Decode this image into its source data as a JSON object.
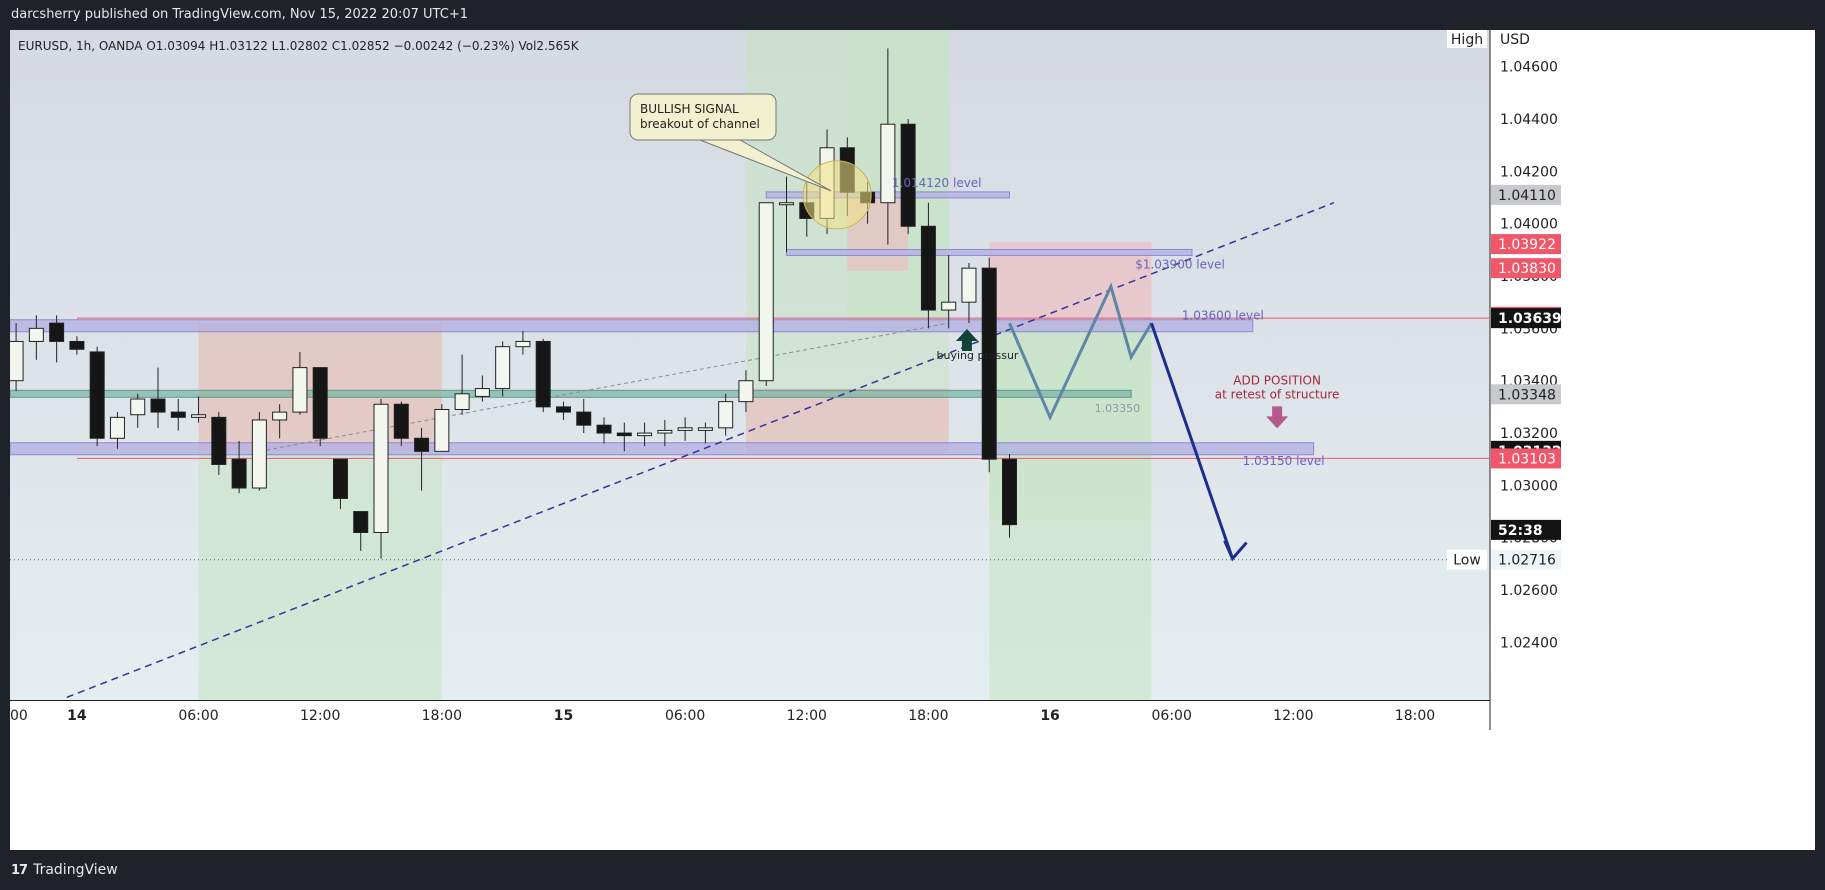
{
  "header": {
    "publisher_line": "darcsherry published on TradingView.com, Nov 15, 2022 20:07 UTC+1"
  },
  "footer": {
    "brand": "TradingView",
    "logo_glyph": "17"
  },
  "colors": {
    "bull_fill": "#f2f6ee",
    "bear_fill": "#161616",
    "green_zone": "#c7e3c4",
    "red_zone": "#efb9bd",
    "purple_band": "#b3aee3",
    "teal_band": "#7fb6a6",
    "trend_line": "#35339a",
    "arrow_blue": "#1b2f8c",
    "zigzag": "#5e86a6",
    "price_red": "#f0576a",
    "axis_bg": "#ffffff"
  },
  "chart_data": {
    "type": "candlestick",
    "legend_line": "EURUSD, 1h, OANDA  O1.03094  H1.03122  L1.02802  C1.02852  −0.00242 (−0.23%)  Vol2.565K",
    "currency": "USD",
    "ylim": [
      1.0218,
      1.0474
    ],
    "xlim": [
      -0.3,
      72.7
    ],
    "x_unit": "hours since Nov 13 21:00",
    "x_ticks": [
      {
        "x": -0.3,
        "label": "00"
      },
      {
        "x": 3,
        "label": "14"
      },
      {
        "x": 9,
        "label": "06:00"
      },
      {
        "x": 15,
        "label": "12:00"
      },
      {
        "x": 21,
        "label": "18:00"
      },
      {
        "x": 27,
        "label": "15"
      },
      {
        "x": 33,
        "label": "06:00"
      },
      {
        "x": 39,
        "label": "12:00"
      },
      {
        "x": 45,
        "label": "18:00"
      },
      {
        "x": 51,
        "label": "16"
      },
      {
        "x": 57,
        "label": "06:00"
      },
      {
        "x": 63,
        "label": "12:00"
      },
      {
        "x": 69,
        "label": "18:00"
      }
    ],
    "y_ticks": [
      1.024,
      1.026,
      1.028,
      1.03,
      1.032,
      1.034,
      1.036,
      1.038,
      1.04,
      1.042,
      1.044,
      1.046
    ],
    "y_tick_labels": [
      "1.02400",
      "1.02600",
      "1.02800",
      "1.03000",
      "1.03200",
      "1.03400",
      "1.03600",
      "1.03800",
      "1.04000",
      "1.04200",
      "1.04400",
      "1.04600"
    ],
    "candles": [
      {
        "x": -1,
        "o": 1.0332,
        "h": 1.0342,
        "l": 1.0322,
        "c": 1.034
      },
      {
        "x": 0,
        "o": 1.034,
        "h": 1.0362,
        "l": 1.0336,
        "c": 1.0355
      },
      {
        "x": 1,
        "o": 1.0355,
        "h": 1.0365,
        "l": 1.0348,
        "c": 1.036
      },
      {
        "x": 2,
        "o": 1.0362,
        "h": 1.0365,
        "l": 1.0347,
        "c": 1.0355
      },
      {
        "x": 3,
        "o": 1.0355,
        "h": 1.0357,
        "l": 1.035,
        "c": 1.0352
      },
      {
        "x": 4,
        "o": 1.0351,
        "h": 1.0353,
        "l": 1.0315,
        "c": 1.0318
      },
      {
        "x": 5,
        "o": 1.0318,
        "h": 1.0328,
        "l": 1.0314,
        "c": 1.0326
      },
      {
        "x": 6,
        "o": 1.0327,
        "h": 1.0335,
        "l": 1.0322,
        "c": 1.0333
      },
      {
        "x": 7,
        "o": 1.0333,
        "h": 1.0345,
        "l": 1.0322,
        "c": 1.0328
      },
      {
        "x": 8,
        "o": 1.0328,
        "h": 1.0333,
        "l": 1.0321,
        "c": 1.0326
      },
      {
        "x": 9,
        "o": 1.0326,
        "h": 1.0334,
        "l": 1.0324,
        "c": 1.0327
      },
      {
        "x": 10,
        "o": 1.0326,
        "h": 1.0328,
        "l": 1.0304,
        "c": 1.0308
      },
      {
        "x": 11,
        "o": 1.031,
        "h": 1.0317,
        "l": 1.0297,
        "c": 1.0299
      },
      {
        "x": 12,
        "o": 1.0299,
        "h": 1.0328,
        "l": 1.0298,
        "c": 1.0325
      },
      {
        "x": 13,
        "o": 1.0325,
        "h": 1.0331,
        "l": 1.0318,
        "c": 1.0328
      },
      {
        "x": 14,
        "o": 1.0328,
        "h": 1.0351,
        "l": 1.0327,
        "c": 1.0345
      },
      {
        "x": 15,
        "o": 1.0345,
        "h": 1.0345,
        "l": 1.0315,
        "c": 1.0318
      },
      {
        "x": 16,
        "o": 1.031,
        "h": 1.031,
        "l": 1.0291,
        "c": 1.0295
      },
      {
        "x": 17,
        "o": 1.029,
        "h": 1.029,
        "l": 1.0275,
        "c": 1.0282
      },
      {
        "x": 18,
        "o": 1.0282,
        "h": 1.0333,
        "l": 1.0272,
        "c": 1.0331
      },
      {
        "x": 19,
        "o": 1.0331,
        "h": 1.0332,
        "l": 1.0315,
        "c": 1.0318
      },
      {
        "x": 20,
        "o": 1.0318,
        "h": 1.0322,
        "l": 1.0298,
        "c": 1.0313
      },
      {
        "x": 21,
        "o": 1.0313,
        "h": 1.0331,
        "l": 1.0313,
        "c": 1.0329
      },
      {
        "x": 22,
        "o": 1.0329,
        "h": 1.035,
        "l": 1.0327,
        "c": 1.0335
      },
      {
        "x": 23,
        "o": 1.0334,
        "h": 1.0342,
        "l": 1.0332,
        "c": 1.0337
      },
      {
        "x": 24,
        "o": 1.0337,
        "h": 1.0355,
        "l": 1.0334,
        "c": 1.0353
      },
      {
        "x": 25,
        "o": 1.0353,
        "h": 1.0359,
        "l": 1.035,
        "c": 1.0355
      },
      {
        "x": 26,
        "o": 1.0355,
        "h": 1.0356,
        "l": 1.0328,
        "c": 1.033
      },
      {
        "x": 27,
        "o": 1.033,
        "h": 1.0332,
        "l": 1.0325,
        "c": 1.0328
      },
      {
        "x": 28,
        "o": 1.0328,
        "h": 1.0333,
        "l": 1.032,
        "c": 1.0323
      },
      {
        "x": 29,
        "o": 1.0323,
        "h": 1.0326,
        "l": 1.0316,
        "c": 1.032
      },
      {
        "x": 30,
        "o": 1.032,
        "h": 1.0324,
        "l": 1.0313,
        "c": 1.0319
      },
      {
        "x": 31,
        "o": 1.0319,
        "h": 1.0324,
        "l": 1.0315,
        "c": 1.032
      },
      {
        "x": 32,
        "o": 1.032,
        "h": 1.0325,
        "l": 1.0315,
        "c": 1.0321
      },
      {
        "x": 33,
        "o": 1.0321,
        "h": 1.0326,
        "l": 1.0317,
        "c": 1.0322
      },
      {
        "x": 34,
        "o": 1.0321,
        "h": 1.0324,
        "l": 1.0316,
        "c": 1.0322
      },
      {
        "x": 35,
        "o": 1.0322,
        "h": 1.0335,
        "l": 1.0319,
        "c": 1.0332
      },
      {
        "x": 36,
        "o": 1.0332,
        "h": 1.0344,
        "l": 1.0328,
        "c": 1.034
      },
      {
        "x": 37,
        "o": 1.034,
        "h": 1.0408,
        "l": 1.0338,
        "c": 1.0408
      },
      {
        "x": 38,
        "o": 1.0408,
        "h": 1.0418,
        "l": 1.0389,
        "c": 1.0408
      },
      {
        "x": 39,
        "o": 1.0408,
        "h": 1.0416,
        "l": 1.0395,
        "c": 1.0402
      },
      {
        "x": 40,
        "o": 1.0402,
        "h": 1.0436,
        "l": 1.0396,
        "c": 1.0429
      },
      {
        "x": 41,
        "o": 1.0429,
        "h": 1.0433,
        "l": 1.0403,
        "c": 1.0412
      },
      {
        "x": 42,
        "o": 1.0412,
        "h": 1.0416,
        "l": 1.04,
        "c": 1.0408
      },
      {
        "x": 43,
        "o": 1.0408,
        "h": 1.0467,
        "l": 1.0392,
        "c": 1.0438
      },
      {
        "x": 44,
        "o": 1.0438,
        "h": 1.044,
        "l": 1.0396,
        "c": 1.0399
      },
      {
        "x": 45,
        "o": 1.0399,
        "h": 1.0408,
        "l": 1.036,
        "c": 1.0367
      },
      {
        "x": 46,
        "o": 1.0367,
        "h": 1.0388,
        "l": 1.036,
        "c": 1.037
      },
      {
        "x": 47,
        "o": 1.037,
        "h": 1.0385,
        "l": 1.0362,
        "c": 1.0383
      },
      {
        "x": 48,
        "o": 1.0383,
        "h": 1.0387,
        "l": 1.0305,
        "c": 1.031
      },
      {
        "x": 49,
        "o": 1.031,
        "h": 1.0312,
        "l": 1.028,
        "c": 1.0285
      }
    ],
    "annotations": {
      "signal_title": "BULLISH SIGNAL",
      "signal_subtitle": "breakout of channel",
      "level_1": "1.014120 level",
      "level_2": "$1.03900 level",
      "level_3": "1.03600 level",
      "level_4": "1.03350",
      "level_5": "1.03150 level",
      "buying": "buying pressur",
      "add_position_1": "ADD POSITION",
      "add_position_2": "at retest of structure",
      "high": "High",
      "low": "Low"
    },
    "axis_badges": [
      {
        "value": 1.0411,
        "label": "1.04110",
        "kind": "grey"
      },
      {
        "value": 1.03922,
        "label": "1.03922",
        "kind": "red"
      },
      {
        "value": 1.0383,
        "label": "1.03830",
        "kind": "red"
      },
      {
        "value": 1.03644,
        "label": "1.03644",
        "kind": "red"
      },
      {
        "value": 1.03639,
        "label": "1.03639",
        "kind": "black"
      },
      {
        "value": 1.03348,
        "label": "1.03348",
        "kind": "grey"
      },
      {
        "value": 1.03132,
        "label": "1.03132",
        "kind": "black"
      },
      {
        "value": 1.03103,
        "label": "1.03103",
        "kind": "red"
      },
      {
        "value": 1.0283,
        "label": "52:38",
        "kind": "black"
      },
      {
        "value": 1.02716,
        "label": "1.02716",
        "kind": "white"
      }
    ],
    "zones": [
      {
        "kind": "green",
        "x0": 9,
        "x1": 21,
        "y0": 1.0218,
        "y1": 1.0362
      },
      {
        "kind": "red",
        "x0": 9,
        "x1": 21,
        "y0": 1.0313,
        "y1": 1.0362
      },
      {
        "kind": "green",
        "x0": 36,
        "x1": 46,
        "y0": 1.0313,
        "y1": 1.0474
      },
      {
        "kind": "green",
        "x0": 41,
        "x1": 46,
        "y0": 1.0362,
        "y1": 1.0474
      },
      {
        "kind": "red",
        "x0": 36,
        "x1": 46,
        "y0": 1.0312,
        "y1": 1.0337
      },
      {
        "kind": "red",
        "x0": 41,
        "x1": 44,
        "y0": 1.0382,
        "y1": 1.041
      },
      {
        "kind": "green",
        "x0": 48,
        "x1": 56,
        "y0": 1.0218,
        "y1": 1.0362
      },
      {
        "kind": "red",
        "x0": 48,
        "x1": 56,
        "y0": 1.0362,
        "y1": 1.0393
      },
      {
        "kind": "green",
        "x0": 48,
        "x1": 56,
        "y0": 1.0287,
        "y1": 1.0362
      }
    ],
    "bands": [
      {
        "kind": "purple",
        "x0": -0.3,
        "x1": 61,
        "y": 1.0361
      },
      {
        "kind": "purple",
        "x0": -0.3,
        "x1": 64,
        "y": 1.0314
      },
      {
        "kind": "teal",
        "x0": -0.3,
        "x1": 55,
        "y": 1.0335
      },
      {
        "kind": "purple",
        "x0": 37,
        "x1": 49,
        "y": 1.0411
      },
      {
        "kind": "purple",
        "x0": 38,
        "x1": 58,
        "y": 1.0389
      }
    ],
    "price_lines": [
      {
        "y": 1.03639,
        "x0": 3,
        "x1": 72.7
      },
      {
        "y": 1.03103,
        "x0": 3,
        "x1": 72.7
      }
    ],
    "low_line": 1.02716,
    "trend_line": [
      {
        "x": 2.5,
        "y": 1.0219
      },
      {
        "x": 65,
        "y": 1.0408
      }
    ],
    "channel_line": [
      {
        "x": 12,
        "y": 1.0313
      },
      {
        "x": 46,
        "y": 1.0362
      }
    ],
    "zigzag": [
      {
        "x": 49,
        "y": 1.0362
      },
      {
        "x": 51,
        "y": 1.0326
      },
      {
        "x": 54,
        "y": 1.0376
      },
      {
        "x": 55,
        "y": 1.0349
      },
      {
        "x": 56,
        "y": 1.0362
      }
    ],
    "big_arrow": [
      {
        "x": 56,
        "y": 1.0362
      },
      {
        "x": 60,
        "y": 1.0272
      }
    ]
  }
}
